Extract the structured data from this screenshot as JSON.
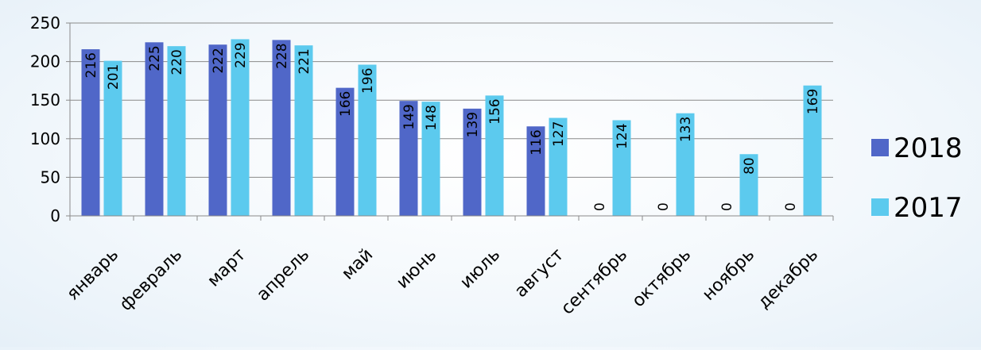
{
  "chart_data": {
    "type": "bar",
    "categories": [
      "январь",
      "февраль",
      "март",
      "апрель",
      "май",
      "июнь",
      "июль",
      "август",
      "сентябрь",
      "октябрь",
      "ноябрь",
      "декабрь"
    ],
    "series": [
      {
        "name": "2018",
        "color": "#5067c8",
        "values": [
          216,
          225,
          222,
          228,
          166,
          149,
          139,
          116,
          0,
          0,
          0,
          0
        ]
      },
      {
        "name": "2017",
        "color": "#5ccaee",
        "values": [
          201,
          220,
          229,
          221,
          196,
          148,
          156,
          127,
          124,
          133,
          80,
          169
        ]
      }
    ],
    "y_ticks": [
      0,
      50,
      100,
      150,
      200,
      250
    ],
    "ylim": [
      0,
      250
    ],
    "grid": true,
    "legend_position": "right"
  }
}
